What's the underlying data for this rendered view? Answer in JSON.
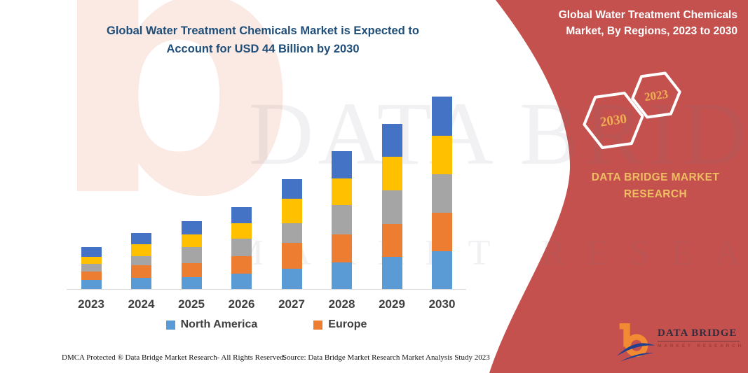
{
  "page": {
    "background": "#FFFFFF",
    "accent_red": "#C5514E",
    "title_blue": "#1F4E79",
    "gold": "#EFBD62"
  },
  "chart_title": {
    "line1": "Global Water Treatment Chemicals Market is Expected to",
    "line2": "Account for USD 44 Billion by 2030"
  },
  "right_panel": {
    "title_line1": "Global Water Treatment Chemicals",
    "title_line2": "Market, By Regions, 2023 to 2030",
    "hexagon_large_label": "2030",
    "hexagon_small_label": "2023",
    "brand_line1": "DATA BRIDGE MARKET",
    "brand_line2": "RESEARCH"
  },
  "chart_data": {
    "type": "bar",
    "stacked": true,
    "title": "Global Water Treatment Chemicals Market is Expected to Account for USD 44 Billion by 2030",
    "unit": "USD Billion",
    "categories": [
      "2023",
      "2024",
      "2025",
      "2026",
      "2027",
      "2028",
      "2029",
      "2030"
    ],
    "series": [
      {
        "name": "North America",
        "color": "#5B9BD5",
        "in_legend": true,
        "values": [
          2.1,
          2.6,
          2.7,
          3.5,
          4.6,
          6.1,
          7.4,
          8.6
        ]
      },
      {
        "name": "Europe",
        "color": "#ED7D31",
        "in_legend": true,
        "values": [
          1.9,
          2.9,
          3.2,
          4.0,
          5.9,
          6.4,
          7.5,
          8.8
        ]
      },
      {
        "name": "",
        "color": "#A5A5A5",
        "in_legend": false,
        "values": [
          1.8,
          2.1,
          3.7,
          4.0,
          4.5,
          6.7,
          7.7,
          8.8
        ]
      },
      {
        "name": "",
        "color": "#FFC000",
        "in_legend": false,
        "values": [
          1.6,
          2.6,
          2.9,
          3.5,
          5.6,
          6.1,
          7.7,
          8.8
        ]
      },
      {
        "name": "",
        "color": "#4472C4",
        "in_legend": false,
        "values": [
          2.2,
          2.6,
          3.0,
          3.7,
          4.6,
          6.2,
          7.5,
          9.0
        ]
      }
    ],
    "totals": [
      9.6,
      12.8,
      15.5,
      18.7,
      25.2,
      31.5,
      37.8,
      44.0
    ],
    "ylim": [
      0,
      44
    ],
    "xlabel": "",
    "ylabel": "",
    "grid": false,
    "legend_position": "bottom"
  },
  "legend": [
    {
      "label": "North America",
      "color": "#5B9BD5"
    },
    {
      "label": "Europe",
      "color": "#ED7D31"
    }
  ],
  "footer": {
    "left": "DMCA Protected ® Data Bridge Market Research-  All Rights Reserved.",
    "right": "Source: Data Bridge Market Research  Market Analysis Study 2023"
  },
  "logo": {
    "title": "DATA BRIDGE",
    "subtitle": "MARKET RESEARCH"
  },
  "watermark": {
    "letter": "b",
    "text1": "DATA BRIDGE",
    "text2": "MARKET RESEARCH"
  }
}
